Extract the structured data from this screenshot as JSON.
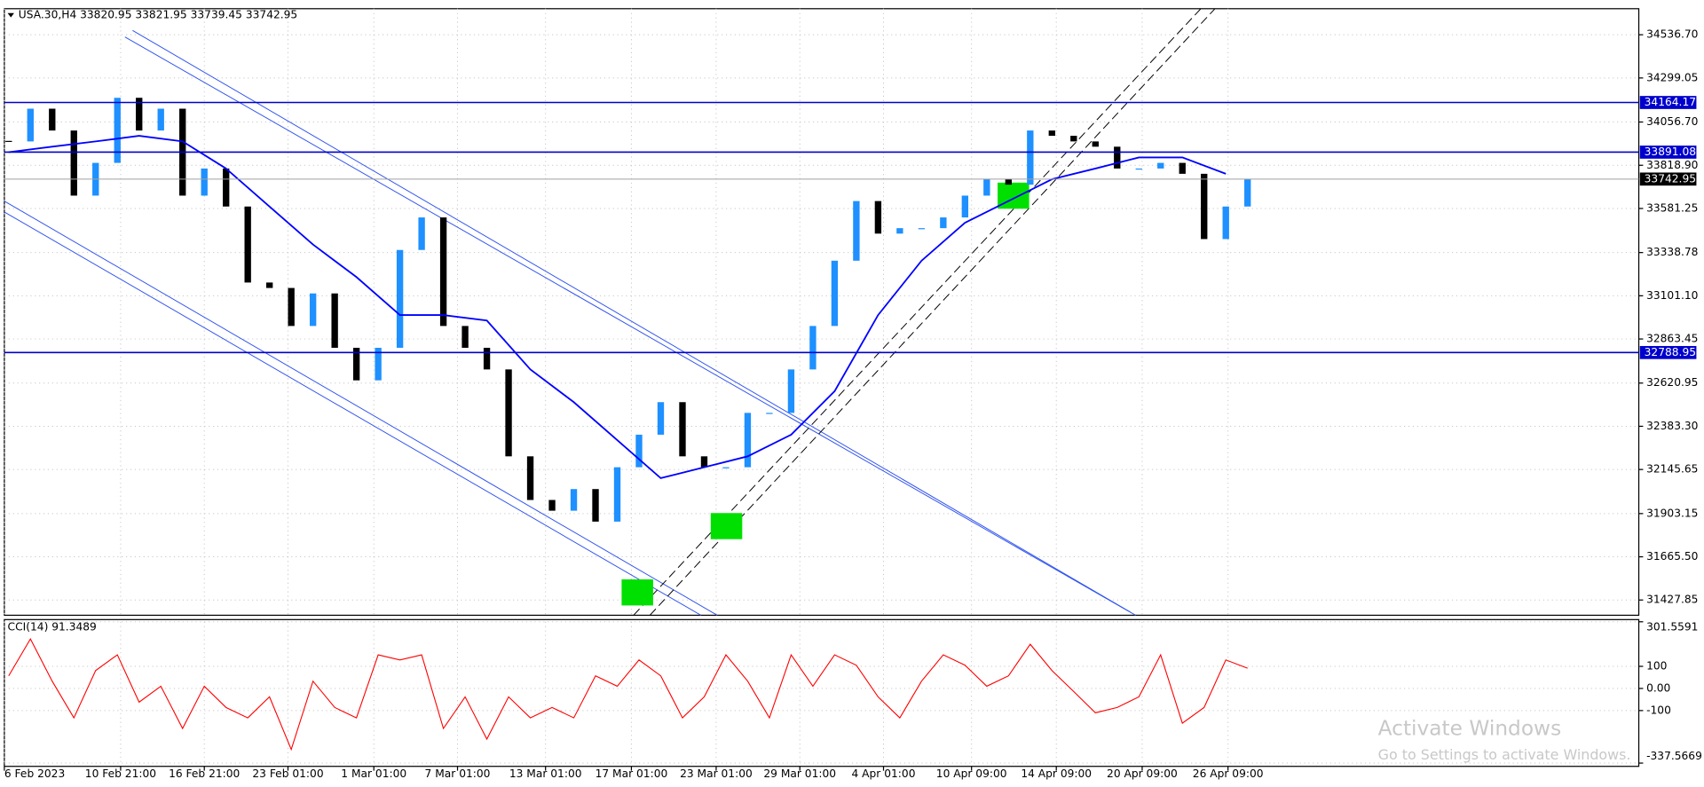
{
  "chart_data": [
    {
      "type": "candlestick",
      "title": "USA.30,H4  33820.95 33821.95 33739.45 33742.95",
      "values": [
        33950,
        34130,
        34010,
        33652,
        33832,
        34190,
        34010,
        34130,
        33652,
        33801,
        33592,
        33174,
        33144,
        32935,
        33114,
        32815,
        32636,
        32815,
        33353,
        33532,
        32935,
        32815,
        32696,
        32218,
        31978,
        31919,
        32038,
        31859,
        32158,
        32337,
        32516,
        32218,
        32158,
        32158,
        32457,
        32457,
        32696,
        32935,
        33294,
        33622,
        33443,
        33473,
        33473,
        33532,
        33652,
        33742,
        33712,
        34010,
        33981,
        33950,
        33921,
        33801,
        33801,
        33832,
        33772,
        33413,
        33592,
        33742.95
      ],
      "up_color": "#1e90ff",
      "down_color": "#000000",
      "moving_average": {
        "color": "#0000ff",
        "x": [
          0,
          2,
          4,
          6,
          8,
          10,
          12,
          14,
          16,
          18,
          20,
          22,
          24,
          26,
          28,
          30,
          32,
          34,
          36,
          38,
          40,
          42,
          44,
          46,
          48,
          50,
          52,
          54,
          56
        ],
        "values": [
          33891,
          33921,
          33950,
          33981,
          33950,
          33801,
          33592,
          33383,
          33204,
          32995,
          32995,
          32965,
          32696,
          32516,
          32307,
          32098,
          32158,
          32218,
          32337,
          32576,
          32995,
          33294,
          33503,
          33622,
          33742,
          33801,
          33862,
          33862,
          33772
        ]
      },
      "levels": [
        34164.17,
        33891.08,
        32788.95
      ],
      "level_color": "#0000cd",
      "bid": 33742.95,
      "ylim": [
        31344,
        34680
      ],
      "yticks": [
        {
          "value": 34536.7,
          "label": "34536.70"
        },
        34299.05,
        {
          "value": 34056.7,
          "label": "34056.70"
        },
        {
          "value": 33818.9,
          "label": "33818.90"
        },
        33581.25,
        33338.78,
        {
          "value": 33101.1,
          "label": "33101.10"
        },
        32863.45,
        32620.95,
        {
          "value": 32383.3,
          "label": "32383.30"
        },
        32145.65,
        31903.15,
        {
          "value": 31665.5,
          "label": "31665.50"
        },
        31427.85
      ],
      "xlim": [
        -0.2,
        75
      ],
      "xticks": [
        {
          "value": -0.2,
          "label": "6 Feb 2023"
        },
        {
          "value": 5.15,
          "label": "10 Feb 21:00"
        },
        {
          "value": 9,
          "label": "16 Feb 21:00"
        },
        {
          "value": 12.85,
          "label": "23 Feb 01:00"
        },
        {
          "value": 16.8,
          "label": "1 Mar 01:00"
        },
        {
          "value": 20.65,
          "label": "7 Mar 01:00"
        },
        {
          "value": 24.7,
          "label": "13 Mar 01:00"
        },
        {
          "value": 28.65,
          "label": "17 Mar 01:00"
        },
        {
          "value": 32.55,
          "label": "23 Mar 01:00"
        },
        {
          "value": 36.4,
          "label": "29 Mar 01:00"
        },
        {
          "value": 40.25,
          "label": "4 Apr 01:00"
        },
        {
          "value": 44.3,
          "label": "10 Apr 09:00"
        },
        {
          "value": 48.2,
          "label": "14 Apr 09:00"
        },
        {
          "value": 52.15,
          "label": "20 Apr 09:00"
        },
        {
          "value": 56.1,
          "label": "26 Apr 09:00"
        }
      ],
      "grid": true
    },
    {
      "type": "line",
      "title": "CCI(14) 91.3489",
      "color": "#ff0000",
      "values": [
        57,
        224,
        33,
        -133,
        81,
        152,
        -62,
        10,
        -181,
        10,
        -86,
        -133,
        -38,
        -276,
        33,
        -86,
        -133,
        152,
        129,
        152,
        -181,
        -38,
        -229,
        -38,
        -133,
        -86,
        -133,
        57,
        10,
        129,
        57,
        -133,
        -38,
        152,
        33,
        -133,
        152,
        10,
        152,
        105,
        -38,
        -133,
        33,
        152,
        105,
        10,
        57,
        200,
        81,
        -14,
        -110,
        -86,
        -38,
        152,
        -157,
        -86,
        129,
        91.3489
      ],
      "ylim": [
        -337.5669,
        301.5591
      ],
      "yticks": [
        301.5591,
        100,
        {
          "value": 0,
          "label": "0.00"
        },
        -100,
        -337.5669
      ],
      "grid": true
    }
  ],
  "watermark": {
    "title": "Activate Windows",
    "subtitle": "Go to Settings to activate Windows."
  }
}
